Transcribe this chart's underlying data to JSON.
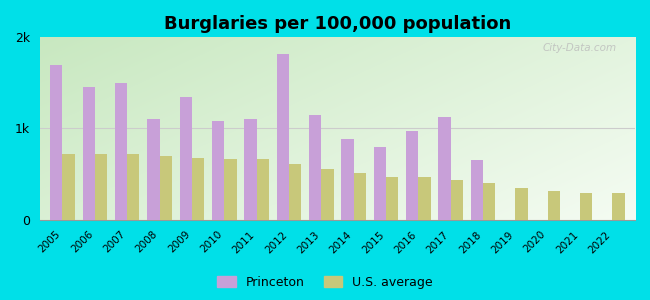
{
  "title": "Burglaries per 100,000 population",
  "years": [
    2005,
    2006,
    2007,
    2008,
    2009,
    2010,
    2011,
    2012,
    2013,
    2014,
    2015,
    2016,
    2017,
    2018,
    2019,
    2020,
    2021,
    2022
  ],
  "princeton": [
    1700,
    1450,
    1500,
    1100,
    1350,
    1080,
    1100,
    1820,
    1150,
    880,
    800,
    970,
    1130,
    650,
    0,
    0,
    0,
    0
  ],
  "us_average": [
    720,
    720,
    720,
    700,
    680,
    660,
    660,
    610,
    560,
    510,
    470,
    470,
    430,
    400,
    350,
    310,
    290,
    290
  ],
  "princeton_color": "#c8a0d8",
  "us_color": "#c8c87a",
  "background_outer": "#00e0e8",
  "ylim": [
    0,
    2000
  ],
  "yticks": [
    0,
    1000,
    2000
  ],
  "ytick_labels": [
    "0",
    "1k",
    "2k"
  ],
  "legend_princeton": "Princeton",
  "legend_us": "U.S. average",
  "bar_width": 0.38,
  "title_fontsize": 13,
  "watermark": "City-Data.com"
}
